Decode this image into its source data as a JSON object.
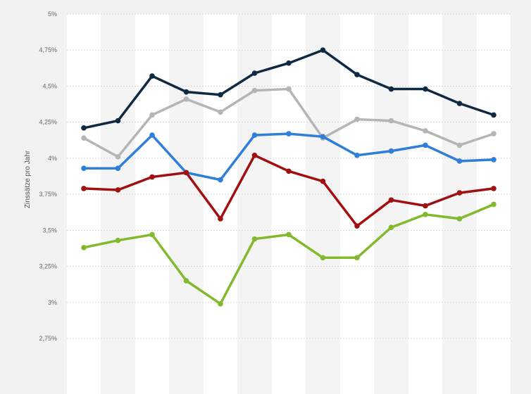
{
  "chart_data": {
    "type": "line",
    "title": "",
    "xlabel": "",
    "ylabel": "Zinssätze pro Jahr",
    "categories": [
      "",
      "",
      "",
      "",
      "",
      "",
      "",
      "",
      "",
      "",
      "",
      "",
      ""
    ],
    "ylim": [
      2.75,
      5.0
    ],
    "yticks": [
      {
        "value": 2.75,
        "label": "2,75%"
      },
      {
        "value": 3.0,
        "label": "3%"
      },
      {
        "value": 3.25,
        "label": "3,25%"
      },
      {
        "value": 3.5,
        "label": "3,5%"
      },
      {
        "value": 3.75,
        "label": "3,75%"
      },
      {
        "value": 4.0,
        "label": "4%"
      },
      {
        "value": 4.25,
        "label": "4,25%"
      },
      {
        "value": 4.5,
        "label": "4,5%"
      },
      {
        "value": 4.75,
        "label": "4,75%"
      },
      {
        "value": 5.0,
        "label": "5%"
      }
    ],
    "grid": true,
    "legend": "none",
    "series": [
      {
        "color": "#0f2942",
        "values": [
          4.21,
          4.26,
          4.57,
          4.46,
          4.44,
          4.59,
          4.66,
          4.75,
          4.58,
          4.48,
          4.48,
          4.38,
          4.3
        ]
      },
      {
        "color": "#b5b5b5",
        "values": [
          4.14,
          4.01,
          4.3,
          4.41,
          4.32,
          4.47,
          4.48,
          4.14,
          4.27,
          4.26,
          4.19,
          4.09,
          4.17
        ]
      },
      {
        "color": "#2f7ed8",
        "values": [
          3.93,
          3.93,
          4.16,
          3.9,
          3.85,
          4.16,
          4.17,
          4.15,
          4.02,
          4.05,
          4.09,
          3.98,
          3.99
        ]
      },
      {
        "color": "#a01010",
        "values": [
          3.79,
          3.78,
          3.87,
          3.9,
          3.58,
          4.02,
          3.91,
          3.84,
          3.53,
          3.71,
          3.67,
          3.76,
          3.79
        ]
      },
      {
        "color": "#82b92d",
        "values": [
          3.38,
          3.43,
          3.47,
          3.15,
          2.99,
          3.44,
          3.47,
          3.31,
          3.31,
          3.52,
          3.61,
          3.58,
          3.68
        ]
      }
    ]
  }
}
